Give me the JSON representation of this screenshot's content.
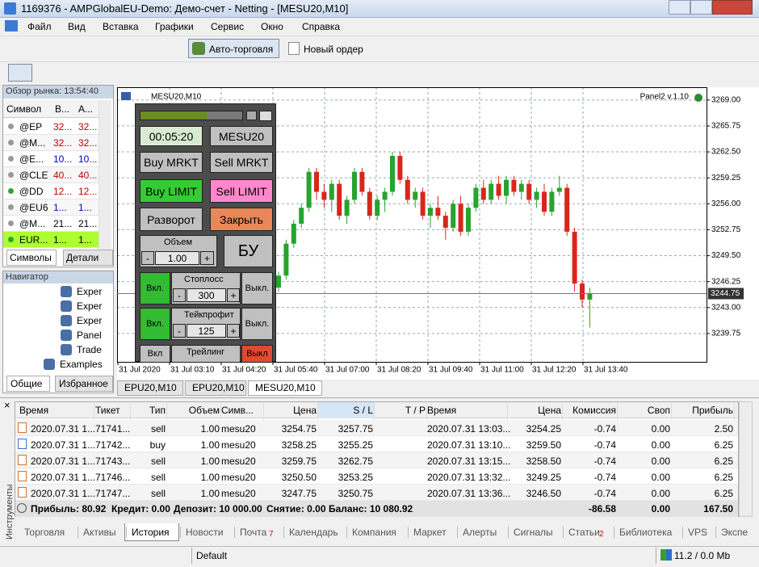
{
  "title_bar": {
    "title": "1169376 - AMPGlobalEU-Demo: Демо-счет - Netting - [MESU20,M10]"
  },
  "menu": [
    "Файл",
    "Вид",
    "Вставка",
    "Графики",
    "Сервис",
    "Окно",
    "Справка"
  ],
  "toolbar": {
    "auto_trading": "Авто-торговля",
    "new_order": "Новый ордер"
  },
  "market_watch": {
    "title": "Обзор рынка: 13:54:40",
    "columns": [
      "Символ",
      "В...",
      "А..."
    ],
    "rows": [
      [
        "@EP",
        "32...",
        "32..."
      ],
      [
        "@M...",
        "32...",
        "32..."
      ],
      [
        "@E...",
        "10...",
        "10..."
      ],
      [
        "@CLE",
        "40...",
        "40..."
      ],
      [
        "@DD",
        "12...",
        "12..."
      ],
      [
        "@EU6",
        "1...",
        "1..."
      ],
      [
        "@M...",
        "21...",
        "21..."
      ],
      [
        "EUR...",
        "1...",
        "1..."
      ]
    ],
    "tabs": [
      "Символы",
      "Детали"
    ]
  },
  "navigator": {
    "title": "Навигатор",
    "items": [
      "Exper",
      "Exper",
      "Exper",
      "Panel",
      "Trade",
      "Examples"
    ],
    "tabs": [
      "Общие",
      "Избранное"
    ]
  },
  "chart_data": {
    "type": "candlestick",
    "title": "MESU20,M10",
    "indicator": "Panel2 v.1.10",
    "xlabels": [
      "31 Jul 2020",
      "31 Jul 03:10",
      "31 Jul 04:20",
      "31 Jul 05:40",
      "31 Jul 07:00",
      "31 Jul 08:20",
      "31 Jul 09:40",
      "31 Jul 11:00",
      "31 Jul 12:20",
      "31 Jul 13:40"
    ],
    "open": [
      3245.5,
      3247,
      3251,
      3253.5,
      3255.5,
      3260,
      3257.5,
      3256.5,
      3258.5,
      3254.5,
      3256.5,
      3260,
      3257.5,
      3254.5,
      3256.5,
      3257.5,
      3262,
      3259,
      3256.5,
      3257.5,
      3254.5,
      3255.5,
      3254.5,
      3253,
      3256,
      3252.5,
      3255.5,
      3258,
      3256.5,
      3258.5,
      3257,
      3259,
      3257.5,
      3258.5,
      3256.5,
      3257.5,
      3255,
      3257.5,
      3258,
      3252.5,
      3246,
      3244
    ],
    "high": [
      3247.5,
      3251.5,
      3254,
      3256,
      3260.5,
      3260.5,
      3258.5,
      3259,
      3259,
      3257,
      3260.5,
      3260.5,
      3258,
      3257,
      3258,
      3262.5,
      3262.5,
      3259.5,
      3258,
      3258,
      3256,
      3257,
      3255,
      3256.5,
      3257,
      3256,
      3258.5,
      3259,
      3259,
      3259.5,
      3259.5,
      3259.5,
      3259,
      3259,
      3258,
      3258.5,
      3258,
      3259.5,
      3258.5,
      3253,
      3246.5,
      3245.5
    ],
    "low": [
      3245,
      3246.5,
      3250.5,
      3253,
      3255,
      3256.5,
      3255.5,
      3255,
      3254,
      3253.5,
      3256,
      3257,
      3254,
      3254,
      3255,
      3257,
      3258.5,
      3256,
      3255.5,
      3254,
      3253,
      3254,
      3251.5,
      3252.5,
      3252,
      3252,
      3255,
      3256,
      3256,
      3256.5,
      3256,
      3257,
      3256.5,
      3256,
      3255.5,
      3254.5,
      3254.5,
      3257,
      3252,
      3245,
      3243,
      3240.5
    ],
    "close": [
      3247,
      3251,
      3253.5,
      3255.5,
      3260,
      3257.5,
      3256.5,
      3258.5,
      3254.5,
      3256.5,
      3260,
      3257.5,
      3254.5,
      3256.5,
      3257.5,
      3262,
      3259,
      3256.5,
      3257.5,
      3254.5,
      3255.5,
      3254.5,
      3253,
      3256,
      3252.5,
      3255.5,
      3258,
      3256.5,
      3258.5,
      3257,
      3259,
      3257.5,
      3258.5,
      3256.5,
      3257.5,
      3255,
      3257.5,
      3258,
      3252.5,
      3246,
      3244,
      3244.75
    ],
    "ylim": [
      3236.2,
      3270.6
    ],
    "yticks": [
      {
        "value": 3269,
        "label": "3269.00"
      },
      3265.75,
      {
        "value": 3262.5,
        "label": "3262.50"
      },
      3259.25,
      {
        "value": 3256,
        "label": "3256.00"
      },
      3252.75,
      {
        "value": 3249.5,
        "label": "3249.50"
      },
      3246.25,
      {
        "value": 3243,
        "label": "3243.00"
      },
      3239.75
    ],
    "last_price": 3244.75,
    "grid": true,
    "up_color": "#27a32f",
    "down_color": "#d8261c",
    "tabs": [
      "EPU20,M10",
      "EPU20,M10",
      "MESU20,M10"
    ]
  },
  "trade_panel": {
    "timer": "00:05:20",
    "symbol": "MESU20",
    "buy_market": "Buy MRKT",
    "sell_market": "Sell MRKT",
    "buy_limit": "Buy LIMIT",
    "sell_limit": "Sell LIMIT",
    "reverse": "Разворот",
    "close": "Закрыть",
    "volume_label": "Объем",
    "volume": "1.00",
    "breakeven": "БУ",
    "minus": "-",
    "plus": "+",
    "stoploss": {
      "on": "Вкл.",
      "label": "Стоплосс",
      "value": "300",
      "off": "Выкл."
    },
    "takeprofit": {
      "on": "Вкл.",
      "label": "Тейкпрофит",
      "value": "125",
      "off": "Выкл."
    },
    "trailing": {
      "on": "Вкл",
      "label": "Трейлинг",
      "off": "Выкл"
    }
  },
  "toolbox": {
    "side_label": "Инструменты",
    "columns": [
      "Время",
      "Тикет",
      "Тип",
      "Объем",
      "Симв...",
      "Цена",
      "S / L",
      "T / P",
      "Время",
      "Цена",
      "Комиссия",
      "Своп",
      "Прибыль"
    ],
    "rows": [
      [
        "2020.07.31 1...",
        "71741...",
        "sell",
        "1.00",
        "mesu20",
        "3254.75",
        "3257.75",
        "2020.07.31 13:03...",
        "3254.25",
        "-0.74",
        "0.00",
        "2.50"
      ],
      [
        "2020.07.31 1...",
        "71742...",
        "buy",
        "1.00",
        "mesu20",
        "3258.25",
        "3255.25",
        "2020.07.31 13:10...",
        "3259.50",
        "-0.74",
        "0.00",
        "6.25"
      ],
      [
        "2020.07.31 1...",
        "71743...",
        "sell",
        "1.00",
        "mesu20",
        "3259.75",
        "3262.75",
        "2020.07.31 13:15...",
        "3258.50",
        "-0.74",
        "0.00",
        "6.25"
      ],
      [
        "2020.07.31 1...",
        "71746...",
        "sell",
        "1.00",
        "mesu20",
        "3250.50",
        "3253.25",
        "2020.07.31 13:32...",
        "3249.25",
        "-0.74",
        "0.00",
        "6.25"
      ],
      [
        "2020.07.31 1...",
        "71747...",
        "sell",
        "1.00",
        "mesu20",
        "3247.75",
        "3250.75",
        "2020.07.31 13:36...",
        "3246.50",
        "-0.74",
        "0.00",
        "6.25"
      ]
    ],
    "summary": {
      "items": [
        "Прибыль: 80.92",
        "Кредит: 0.00",
        "Депозит: 10 000.00",
        "Снятие: 0.00",
        "Баланс: 10 080.92"
      ],
      "commission": "-86.58",
      "swap": "0.00",
      "profit": "167.50"
    },
    "tabs": [
      {
        "label": "Торговля"
      },
      {
        "label": "Активы"
      },
      {
        "label": "История"
      },
      {
        "label": "Новости"
      },
      {
        "label": "Почта",
        "badge": "7"
      },
      {
        "label": "Календарь"
      },
      {
        "label": "Компания"
      },
      {
        "label": "Маркет"
      },
      {
        "label": "Алерты"
      },
      {
        "label": "Сигналы"
      },
      {
        "label": "Статьи",
        "badge": "2"
      },
      {
        "label": "Библиотека"
      },
      {
        "label": "VPS"
      },
      {
        "label": "Экспе"
      }
    ]
  },
  "status_bar": {
    "profile": "Default",
    "memory": "11.2 / 0.0 Mb"
  }
}
